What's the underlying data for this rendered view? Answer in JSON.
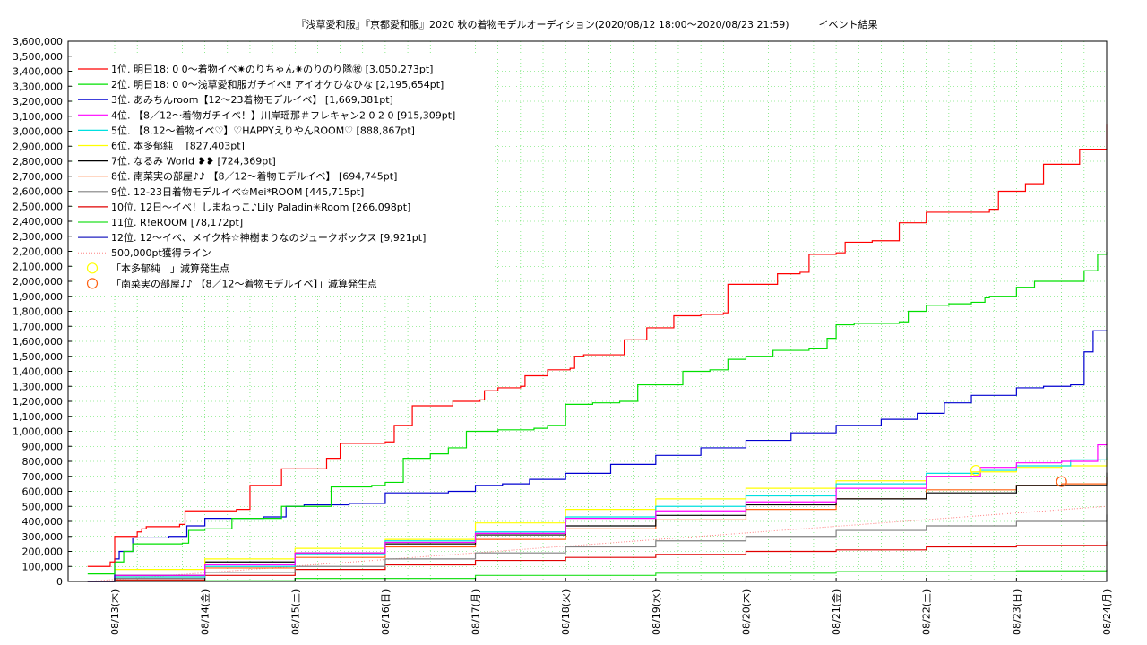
{
  "chart_data": {
    "type": "line",
    "title": "『浅草愛和服』『京都愛和服』2020 秋の着物モデルオーディション(2020/08/12 18:00〜2020/08/23 21:59)　　　イベント結果",
    "xlabel": "",
    "ylabel": "",
    "x_ticks": [
      "08/13(木)",
      "08/14(金)",
      "08/15(土)",
      "08/16(日)",
      "08/17(月)",
      "08/18(火)",
      "08/19(水)",
      "08/20(木)",
      "08/21(金)",
      "08/22(土)",
      "08/23(日)",
      "08/24(月)"
    ],
    "xlim": [
      0,
      11
    ],
    "ylim": [
      0,
      3600000
    ],
    "y_tick_step": 100000,
    "grid": true,
    "legend_position": "top-left",
    "series": [
      {
        "name": "1位. 明日18: 0 0〜着物イベ✷のりちゃん✷のりのり隊㊗ [3,050,273pt]",
        "color": "#ff0000",
        "x": [
          -0.3,
          -0.05,
          0.0,
          0.25,
          0.3,
          0.35,
          0.45,
          0.72,
          0.78,
          1.0,
          1.35,
          1.5,
          1.8,
          1.85,
          2.3,
          2.35,
          2.5,
          2.55,
          3.0,
          3.1,
          3.25,
          3.3,
          3.75,
          3.85,
          4.05,
          4.1,
          4.25,
          4.5,
          4.55,
          4.8,
          4.9,
          5.05,
          5.1,
          5.2,
          5.55,
          5.65,
          5.9,
          6.1,
          6.2,
          6.5,
          6.75,
          6.8,
          7.25,
          7.35,
          7.6,
          7.7,
          8.0,
          8.1,
          8.4,
          8.7,
          8.8,
          9.0,
          9.4,
          9.7,
          9.8,
          9.9,
          10.1,
          10.2,
          10.3,
          10.6,
          10.7,
          10.85,
          11.0
        ],
        "y": [
          100000,
          130000,
          300000,
          330000,
          350000,
          365000,
          365000,
          380000,
          470000,
          470000,
          480000,
          640000,
          640000,
          750000,
          750000,
          820000,
          920000,
          920000,
          930000,
          1040000,
          1040000,
          1170000,
          1200000,
          1200000,
          1210000,
          1270000,
          1290000,
          1300000,
          1370000,
          1410000,
          1410000,
          1420000,
          1500000,
          1510000,
          1510000,
          1610000,
          1690000,
          1690000,
          1770000,
          1780000,
          1790000,
          1980000,
          1980000,
          2050000,
          2060000,
          2180000,
          2190000,
          2260000,
          2270000,
          2390000,
          2390000,
          2460000,
          2460000,
          2480000,
          2600000,
          2600000,
          2650000,
          2650000,
          2780000,
          2780000,
          2880000,
          2880000,
          3050273
        ]
      },
      {
        "name": "2位. 明日18: 0 0〜浅草愛和服ガチイベ‼ アイオケひなひな [2,195,654pt]",
        "color": "#00e000",
        "x": [
          -0.3,
          0.0,
          0.1,
          0.2,
          0.45,
          0.75,
          0.82,
          1.0,
          1.3,
          1.75,
          1.85,
          2.0,
          2.4,
          2.5,
          2.85,
          3.0,
          3.2,
          3.3,
          3.5,
          3.7,
          3.9,
          4.25,
          4.5,
          4.65,
          4.8,
          5.0,
          5.3,
          5.6,
          5.8,
          6.0,
          6.3,
          6.6,
          6.8,
          7.0,
          7.3,
          7.7,
          7.9,
          8.0,
          8.2,
          8.7,
          8.8,
          9.0,
          9.25,
          9.5,
          9.65,
          9.7,
          10.0,
          10.2,
          10.4,
          10.5,
          10.6,
          10.75,
          10.9,
          11.0
        ],
        "y": [
          50000,
          130000,
          200000,
          250000,
          250000,
          255000,
          340000,
          350000,
          420000,
          420000,
          500000,
          500000,
          630000,
          630000,
          640000,
          660000,
          820000,
          820000,
          850000,
          890000,
          1000000,
          1010000,
          1010000,
          1020000,
          1040000,
          1180000,
          1190000,
          1200000,
          1310000,
          1310000,
          1400000,
          1410000,
          1480000,
          1500000,
          1540000,
          1550000,
          1620000,
          1710000,
          1720000,
          1730000,
          1800000,
          1840000,
          1850000,
          1860000,
          1890000,
          1900000,
          1960000,
          2000000,
          2000000,
          2000000,
          2000000,
          2070000,
          2180000,
          2195654
        ]
      },
      {
        "name": "3位. あみちんroom【12〜23着物モデルイベ】 [1,669,381pt]",
        "color": "#0000d0",
        "x": [
          -0.3,
          0.0,
          0.05,
          0.2,
          0.3,
          0.6,
          0.8,
          1.0,
          1.3,
          1.65,
          1.9,
          2.1,
          2.3,
          2.6,
          3.0,
          3.3,
          3.7,
          4.0,
          4.3,
          4.6,
          5.0,
          5.5,
          6.0,
          6.5,
          7.0,
          7.5,
          8.0,
          8.5,
          8.9,
          9.2,
          9.5,
          10.0,
          10.3,
          10.6,
          10.75,
          10.85,
          11.0
        ],
        "y": [
          0,
          150000,
          200000,
          290000,
          290000,
          300000,
          370000,
          420000,
          420000,
          430000,
          500000,
          510000,
          510000,
          520000,
          590000,
          590000,
          600000,
          640000,
          650000,
          680000,
          720000,
          780000,
          840000,
          890000,
          940000,
          990000,
          1040000,
          1080000,
          1120000,
          1190000,
          1240000,
          1290000,
          1300000,
          1310000,
          1530000,
          1670000,
          1669381
        ]
      },
      {
        "name": "4位. 【8／12〜着物ガチイベ！】川岸瑶那＃フレキャン2 0 2 0 [915,309pt]",
        "color": "#ff00ff",
        "x": [
          -0.3,
          0.0,
          1.0,
          2.0,
          3.0,
          4.0,
          5.0,
          6.0,
          7.0,
          8.0,
          9.0,
          9.6,
          10.0,
          10.5,
          10.9,
          11.0
        ],
        "y": [
          0,
          40000,
          110000,
          190000,
          260000,
          320000,
          420000,
          470000,
          530000,
          620000,
          700000,
          760000,
          790000,
          800000,
          910000,
          915309
        ]
      },
      {
        "name": "5位. 【8.12〜着物イベ♡】♡HAPPYえりやんROOM♡ [888,867pt]",
        "color": "#00e0e0",
        "x": [
          -0.3,
          0.0,
          1.0,
          2.0,
          3.0,
          4.0,
          5.0,
          6.0,
          7.0,
          8.0,
          9.0,
          9.6,
          10.0,
          10.6,
          11.0
        ],
        "y": [
          0,
          30000,
          100000,
          180000,
          270000,
          330000,
          430000,
          500000,
          570000,
          650000,
          720000,
          740000,
          770000,
          810000,
          888867
        ]
      },
      {
        "name": "6位. 本多郁純　 [827,403pt]",
        "color": "#ffff00",
        "x": [
          -0.3,
          0.0,
          1.0,
          2.0,
          3.0,
          4.0,
          5.0,
          6.0,
          7.0,
          8.0,
          9.0,
          9.5,
          10.0,
          10.5,
          11.0
        ],
        "y": [
          0,
          80000,
          150000,
          220000,
          280000,
          390000,
          480000,
          550000,
          620000,
          670000,
          700000,
          730000,
          760000,
          770000,
          827403
        ]
      },
      {
        "name": "7位. なるみ World ❥❥ [724,369pt]",
        "color": "#000000",
        "x": [
          -0.3,
          0.0,
          1.0,
          2.0,
          3.0,
          4.0,
          5.0,
          6.0,
          7.0,
          8.0,
          9.0,
          10.0,
          11.0
        ],
        "y": [
          0,
          40000,
          130000,
          190000,
          250000,
          310000,
          370000,
          440000,
          510000,
          550000,
          590000,
          640000,
          724369
        ]
      },
      {
        "name": "8位. 南菜実の部屋♪♪ 【8／12〜着物モデルイベ】 [694,745pt]",
        "color": "#ff6010",
        "x": [
          -0.3,
          0.0,
          1.0,
          2.0,
          3.0,
          4.0,
          5.0,
          6.0,
          7.0,
          8.0,
          9.0,
          10.0,
          10.5,
          11.0
        ],
        "y": [
          0,
          30000,
          90000,
          160000,
          230000,
          280000,
          350000,
          410000,
          480000,
          550000,
          610000,
          640000,
          650000,
          694745
        ]
      },
      {
        "name": "9位. 12-23日着物モデルイベ✩Mei*ROOM [445,715pt]",
        "color": "#808080",
        "x": [
          -0.3,
          0.0,
          1.0,
          2.0,
          3.0,
          4.0,
          5.0,
          6.0,
          7.0,
          8.0,
          9.0,
          10.0,
          11.0
        ],
        "y": [
          0,
          20000,
          60000,
          100000,
          150000,
          190000,
          230000,
          270000,
          300000,
          340000,
          370000,
          400000,
          445715
        ]
      },
      {
        "name": "10位. 12日〜イベ！しまねっこ♪Lily Paladin✳Room [266,098pt]",
        "color": "#e00000",
        "x": [
          -0.3,
          0.0,
          1.0,
          2.0,
          3.0,
          4.0,
          5.0,
          6.0,
          7.0,
          8.0,
          9.0,
          10.0,
          11.0
        ],
        "y": [
          0,
          10000,
          40000,
          80000,
          110000,
          140000,
          160000,
          180000,
          200000,
          210000,
          230000,
          240000,
          266098
        ]
      },
      {
        "name": "11位. R!eROOM [78,172pt]",
        "color": "#20e020",
        "x": [
          -0.3,
          0.0,
          2.0,
          4.0,
          6.0,
          8.0,
          10.0,
          11.0
        ],
        "y": [
          0,
          5000,
          20000,
          40000,
          55000,
          65000,
          70000,
          78172
        ]
      },
      {
        "name": "12位. 12〜イベ、メイク枠☆神樹まりなのジュークボックス [9,921pt]",
        "color": "#2020c0",
        "x": [
          -0.3,
          0.0,
          11.0
        ],
        "y": [
          0,
          1000,
          9921
        ]
      }
    ],
    "reference_line": {
      "name": "500,000pt獲得ライン",
      "color": "#ff8080",
      "x": [
        -0.3,
        11.0
      ],
      "y": [
        0,
        500000
      ]
    },
    "markers": [
      {
        "name": "「本多郁純　」減算発生点",
        "color": "#ffff00",
        "x": 9.55,
        "y": 740000
      },
      {
        "name": "「南菜実の部屋♪♪ 【8／12〜着物モデルイベ】」減算発生点",
        "color": "#ff6010",
        "x": 10.5,
        "y": 665000
      }
    ]
  }
}
